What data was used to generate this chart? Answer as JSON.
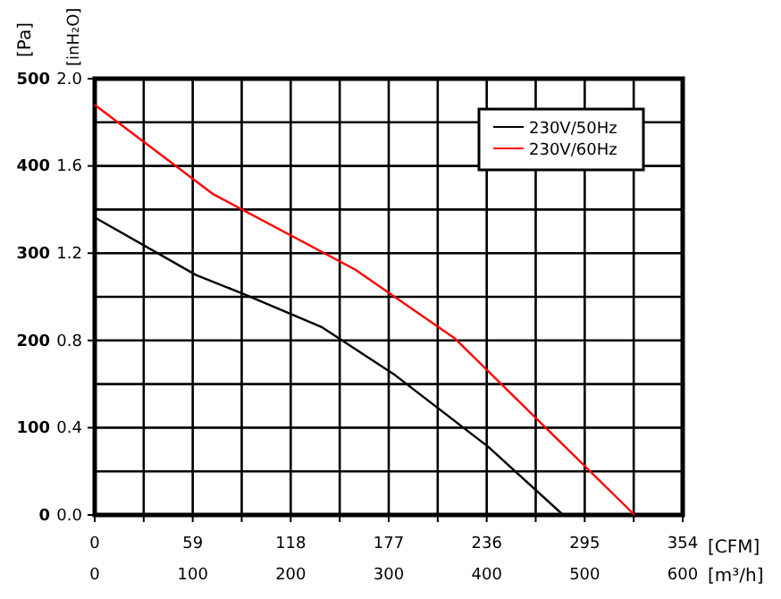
{
  "chart_data": {
    "type": "line",
    "xlabel": "[CFM]",
    "x2label": "[m³/h]",
    "ylabel": "[Pa]",
    "y2label": "[inH₂O]",
    "xlim": [
      0,
      354
    ],
    "xticks": [
      0,
      {
        "value": 29.5,
        "label": null
      },
      59,
      {
        "value": 88.5,
        "label": null
      },
      118,
      {
        "value": 147.5,
        "label": null
      },
      177,
      {
        "value": 206.5,
        "label": null
      },
      236,
      {
        "value": 265.5,
        "label": null
      },
      295,
      {
        "value": 324.5,
        "label": null
      },
      354
    ],
    "x2lim": [
      0,
      600
    ],
    "x2ticks": [
      0,
      100,
      200,
      300,
      400,
      500,
      600
    ],
    "ylim": [
      0,
      500
    ],
    "yticks": [
      0,
      {
        "value": 50,
        "label": null
      },
      100,
      {
        "value": 150,
        "label": null
      },
      200,
      {
        "value": 250,
        "label": null
      },
      300,
      {
        "value": 350,
        "label": null
      },
      400,
      {
        "value": 450,
        "label": null
      },
      500
    ],
    "y2lim": [
      0,
      2.0
    ],
    "y2ticks": [
      {
        "value": 0,
        "label": "0.0"
      },
      0.4,
      0.8,
      1.2,
      1.6,
      {
        "value": 2,
        "label": "2.0"
      }
    ],
    "grid": true,
    "legend": "top right",
    "marker": "none",
    "line_style": "solid",
    "series": [
      {
        "name": "230V/50Hz",
        "color": "#000000",
        "x": [
          0,
          61,
          90,
          137,
          181,
          237,
          282
        ],
        "values": [
          341,
          275,
          253,
          215,
          160,
          78,
          0
        ]
      },
      {
        "name": "230V/60Hz",
        "color": "#ff0000",
        "x": [
          0,
          71,
          157,
          217,
          325
        ],
        "values": [
          470,
          368,
          281,
          202,
          0
        ]
      }
    ]
  }
}
